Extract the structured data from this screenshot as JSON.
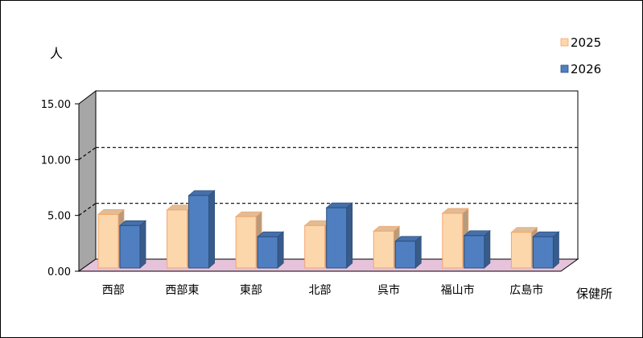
{
  "chart_data": {
    "type": "bar",
    "style": "3d-clustered-column",
    "y_unit_label": "人",
    "x_axis_label": "保健所",
    "categories": [
      "西部",
      "西部東",
      "東部",
      "北部",
      "呉市",
      "福山市",
      "広島市"
    ],
    "series": [
      {
        "name": "2025",
        "color": "#FDD7AC",
        "edge": "#F5A46A",
        "values": [
          4.8,
          5.2,
          4.6,
          3.8,
          3.3,
          4.9,
          3.2
        ]
      },
      {
        "name": "2026",
        "color": "#4F7FC0",
        "edge": "#2B4F80",
        "values": [
          3.8,
          6.5,
          2.8,
          5.4,
          2.4,
          2.9,
          2.8
        ]
      }
    ],
    "y_ticks": [
      "0.00",
      "5.00",
      "10.00",
      "15.00"
    ],
    "ylim": [
      0,
      15
    ],
    "grid": true,
    "legend_position": "top-right",
    "wall_color": "#A6A6A6",
    "floor_color": "#E6C3DA"
  }
}
